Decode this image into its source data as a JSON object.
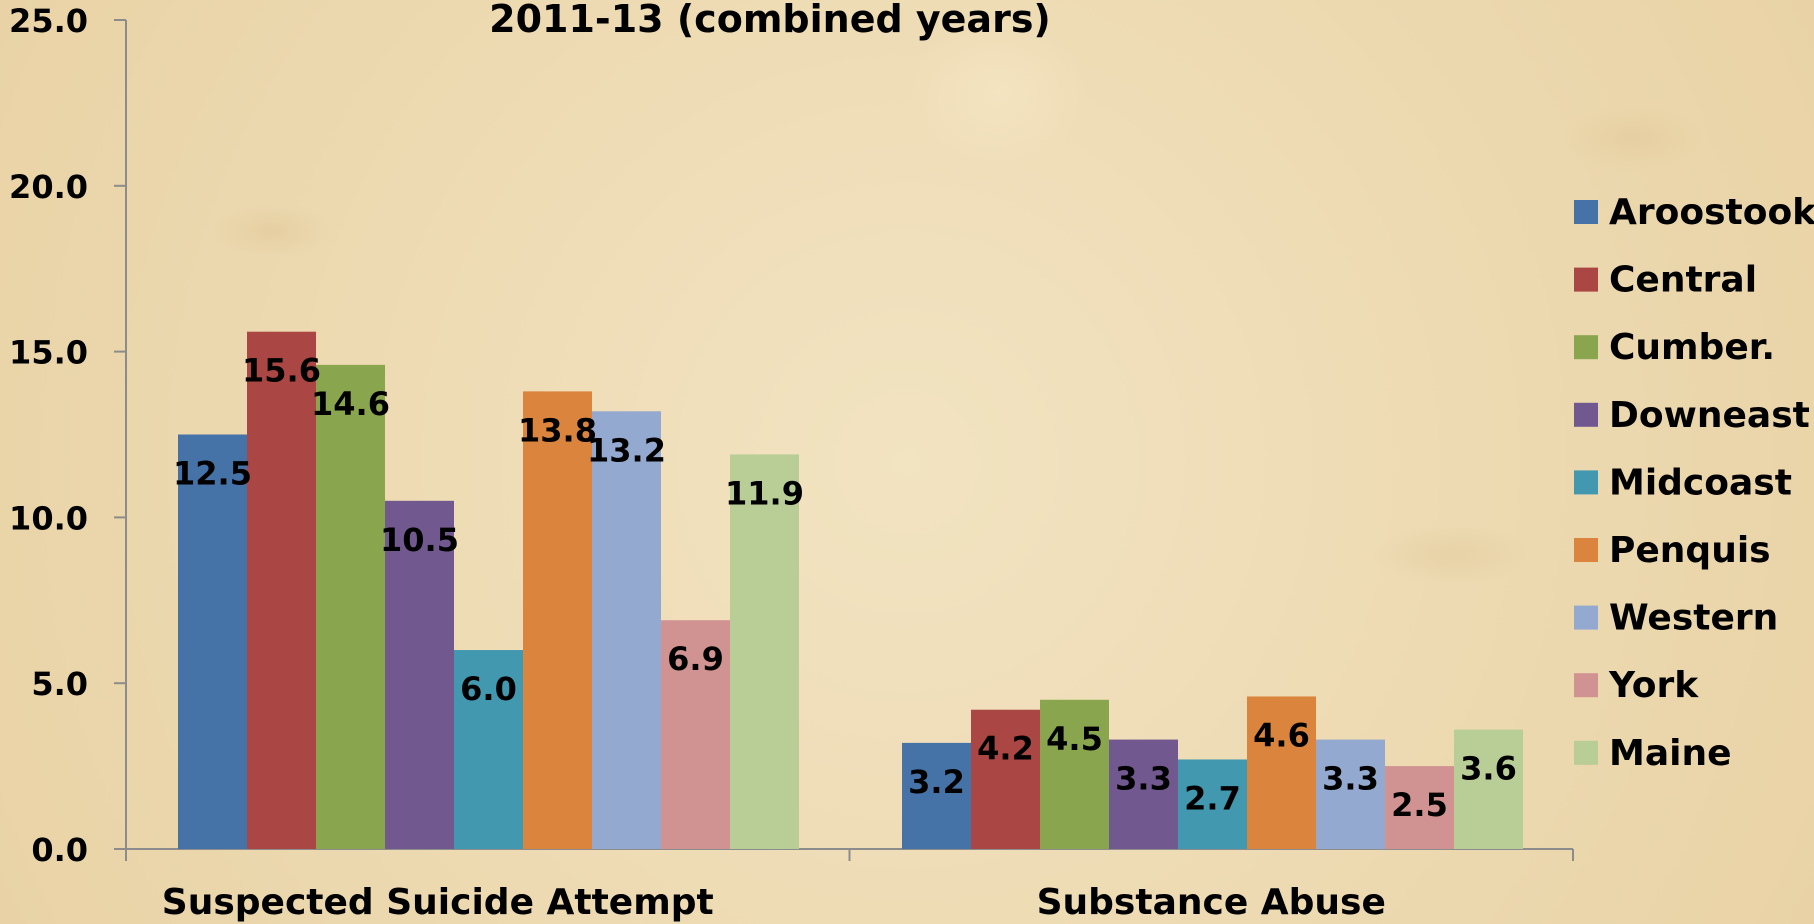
{
  "chart_data": {
    "type": "bar",
    "title": "2011-13 (combined years)",
    "categories": [
      "Suspected Suicide Attempt",
      "Substance Abuse"
    ],
    "series": [
      {
        "name": "Aroostook",
        "color": "#4572a7",
        "values": [
          12.5,
          3.2
        ]
      },
      {
        "name": "Central",
        "color": "#aa4643",
        "values": [
          15.6,
          4.2
        ]
      },
      {
        "name": "Cumber.",
        "color": "#89a54e",
        "values": [
          14.6,
          4.5
        ]
      },
      {
        "name": "Downeast",
        "color": "#71588f",
        "values": [
          10.5,
          3.3
        ]
      },
      {
        "name": "Midcoast",
        "color": "#4198af",
        "values": [
          6.0,
          2.7
        ]
      },
      {
        "name": "Penquis",
        "color": "#db843d",
        "values": [
          13.8,
          4.6
        ]
      },
      {
        "name": "Western",
        "color": "#93a9cf",
        "values": [
          13.2,
          3.3
        ]
      },
      {
        "name": "York",
        "color": "#d19392",
        "values": [
          6.9,
          2.5
        ]
      },
      {
        "name": "Maine",
        "color": "#b9cd96",
        "values": [
          11.9,
          3.6
        ]
      }
    ],
    "data_labels": [
      [
        "12.5",
        "3.2"
      ],
      [
        "15.6",
        "4.2"
      ],
      [
        "14.6",
        "4.5"
      ],
      [
        "10.5",
        "3.3"
      ],
      [
        "6.0",
        "2.7"
      ],
      [
        "13.8",
        "4.6"
      ],
      [
        "13.2",
        "3.3"
      ],
      [
        "6.9",
        "2.5"
      ],
      [
        "11.9",
        "3.6"
      ]
    ],
    "y_ticks": [
      "0.0",
      "5.0",
      "10.0",
      "15.0",
      "20.0",
      "25.0"
    ],
    "ylim": [
      0,
      25
    ],
    "grid": false,
    "legend_position": "right"
  }
}
